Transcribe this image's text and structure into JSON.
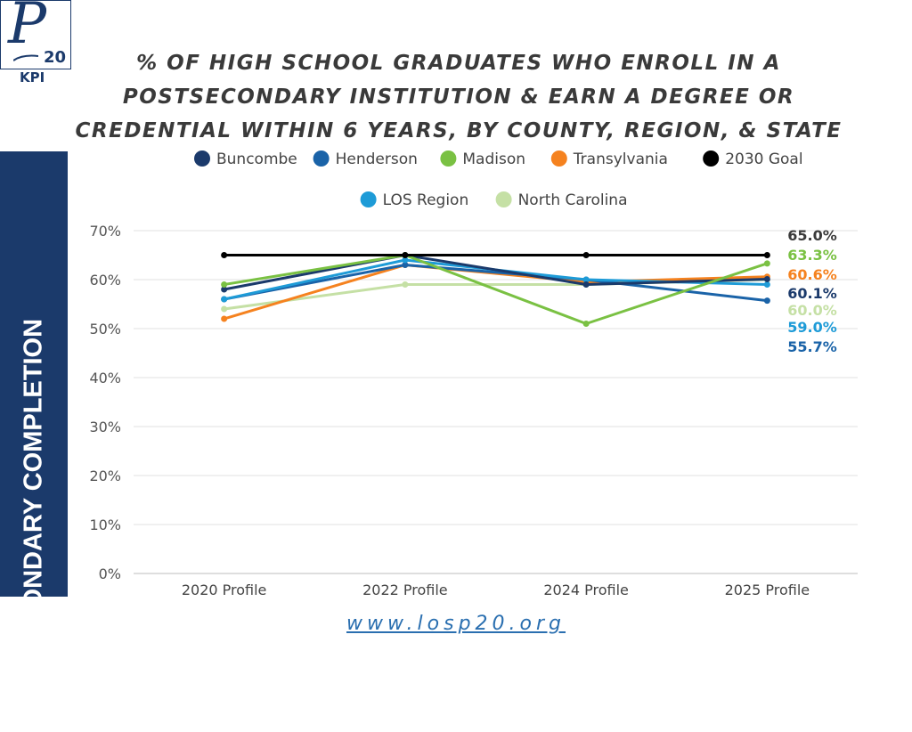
{
  "logo": {
    "mark_letter": "P",
    "mark_number": "20",
    "sub_label": "KPI"
  },
  "side_banner": {
    "text": "POSTSECONDARY COMPLETION"
  },
  "footer": {
    "url": "www.losp20.org"
  },
  "colors": {
    "banner": "#1b3a6b",
    "title_text": "#3a3a3a"
  },
  "chart_data": {
    "type": "line",
    "title": "% OF HIGH SCHOOL GRADUATES WHO ENROLL IN A POSTSECONDARY INSTITUTION & EARN A DEGREE OR CREDENTIAL WITHIN 6 YEARS, BY COUNTY, REGION, & STATE",
    "xlabel": "",
    "ylabel": "",
    "categories": [
      "2020 Profile",
      "2022 Profile",
      "2024 Profile",
      "2025 Profile"
    ],
    "ylim": [
      0,
      70
    ],
    "yticks": [
      "0%",
      "10%",
      "20%",
      "30%",
      "40%",
      "50%",
      "60%",
      "70%"
    ],
    "grid": true,
    "legend_position": "top",
    "series": [
      {
        "name": "Buncombe",
        "color": "#1b3a6b",
        "values": [
          58,
          65,
          59,
          60.1
        ]
      },
      {
        "name": "Henderson",
        "color": "#1a63a8",
        "values": [
          56,
          63,
          60,
          55.7
        ]
      },
      {
        "name": "Madison",
        "color": "#7ac143",
        "values": [
          59,
          65,
          51,
          63.3
        ]
      },
      {
        "name": "Transylvania",
        "color": "#f5821f",
        "values": [
          52,
          63,
          59.5,
          60.6
        ]
      },
      {
        "name": "2030 Goal",
        "color": "#000000",
        "values": [
          65,
          65,
          65,
          65.0
        ]
      },
      {
        "name": "LOS Region",
        "color": "#1e9bd7",
        "values": [
          56,
          64,
          60,
          59.0
        ]
      },
      {
        "name": "North Carolina",
        "color": "#c5e0a5",
        "values": [
          54,
          59,
          59,
          60.0
        ]
      }
    ],
    "end_labels": [
      {
        "text": "65.0%",
        "color": "#3a3a3a"
      },
      {
        "text": "63.3%",
        "color": "#7ac143"
      },
      {
        "text": "60.6%",
        "color": "#f5821f"
      },
      {
        "text": "60.1%",
        "color": "#1b3a6b"
      },
      {
        "text": "60.0%",
        "color": "#c5e0a5"
      },
      {
        "text": "59.0%",
        "color": "#1e9bd7"
      },
      {
        "text": "55.7%",
        "color": "#1a63a8"
      }
    ]
  }
}
